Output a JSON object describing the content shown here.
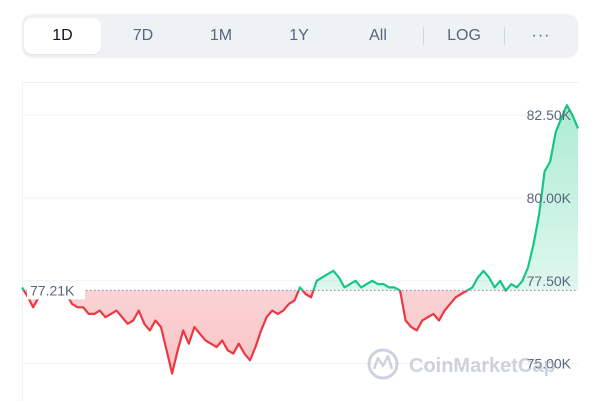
{
  "timeframe_tabs": [
    {
      "label": "1D",
      "active": true
    },
    {
      "label": "7D",
      "active": false
    },
    {
      "label": "1M",
      "active": false
    },
    {
      "label": "1Y",
      "active": false
    },
    {
      "label": "All",
      "active": false
    }
  ],
  "scale_toggle": {
    "label": "LOG"
  },
  "more_menu": {
    "label": "···"
  },
  "watermark": {
    "text": "CoinMarketCap"
  },
  "colors": {
    "up": "#16c784",
    "down": "#ea3943",
    "up_fill": "#16c784",
    "down_fill": "#ea3943",
    "grid": "#eff2f5",
    "axis_text": "#58667e",
    "tab_bg": "#eff2f5"
  },
  "chart_data": {
    "type": "area",
    "reference_price": 77210,
    "reference_label": "77.21K",
    "y_ticks": [
      {
        "value": 75000,
        "label": "75.00K"
      },
      {
        "value": 77500,
        "label": "77.50K"
      },
      {
        "value": 80000,
        "label": "80.00K"
      },
      {
        "value": 82500,
        "label": "82.50K"
      }
    ],
    "ylim": [
      73900,
      83500
    ],
    "x_range": [
      0,
      1
    ],
    "grid": true,
    "series": [
      {
        "x": [
          0.0,
          0.011,
          0.02,
          0.03,
          0.04,
          0.05,
          0.06,
          0.07,
          0.08,
          0.09,
          0.1,
          0.11,
          0.12,
          0.13,
          0.14,
          0.15,
          0.16,
          0.17,
          0.18,
          0.19,
          0.2,
          0.21,
          0.22,
          0.23,
          0.24,
          0.25,
          0.26,
          0.27,
          0.28,
          0.29,
          0.3,
          0.31,
          0.32,
          0.33,
          0.34,
          0.35,
          0.36,
          0.37,
          0.38,
          0.39,
          0.4,
          0.41,
          0.42,
          0.43,
          0.44,
          0.45,
          0.46,
          0.47,
          0.48,
          0.49,
          0.5,
          0.51,
          0.52,
          0.53,
          0.54,
          0.55,
          0.56,
          0.57,
          0.58,
          0.59,
          0.6,
          0.61,
          0.62,
          0.63,
          0.64,
          0.65,
          0.66,
          0.67,
          0.68,
          0.69,
          0.7,
          0.71,
          0.72,
          0.73,
          0.74,
          0.75,
          0.76,
          0.77,
          0.78,
          0.79,
          0.8,
          0.81,
          0.82,
          0.83,
          0.84,
          0.85,
          0.86,
          0.87,
          0.88,
          0.89,
          0.9,
          0.91,
          0.92,
          0.93,
          0.94,
          0.95,
          0.96,
          0.97,
          0.98,
          0.99,
          1.0
        ],
        "y": [
          77300,
          77000,
          76700,
          77000,
          77200,
          77100,
          77000,
          77300,
          77100,
          76800,
          76700,
          76700,
          76500,
          76500,
          76600,
          76400,
          76500,
          76600,
          76400,
          76200,
          76300,
          76600,
          76200,
          76000,
          76300,
          76100,
          75400,
          74700,
          75400,
          76000,
          75600,
          76100,
          75900,
          75700,
          75600,
          75500,
          75700,
          75400,
          75300,
          75600,
          75300,
          75100,
          75500,
          76000,
          76400,
          76600,
          76500,
          76600,
          76800,
          76900,
          77300,
          77100,
          77000,
          77500,
          77600,
          77700,
          77800,
          77600,
          77300,
          77400,
          77500,
          77300,
          77400,
          77500,
          77400,
          77400,
          77300,
          77300,
          77200,
          76300,
          76100,
          76000,
          76300,
          76400,
          76500,
          76300,
          76600,
          76800,
          77000,
          77100,
          77200,
          77300,
          77600,
          77800,
          77600,
          77300,
          77500,
          77200,
          77400,
          77300,
          77500,
          77900,
          78600,
          79500,
          80800,
          81100,
          82000,
          82400,
          82800,
          82500,
          82100
        ]
      }
    ]
  }
}
